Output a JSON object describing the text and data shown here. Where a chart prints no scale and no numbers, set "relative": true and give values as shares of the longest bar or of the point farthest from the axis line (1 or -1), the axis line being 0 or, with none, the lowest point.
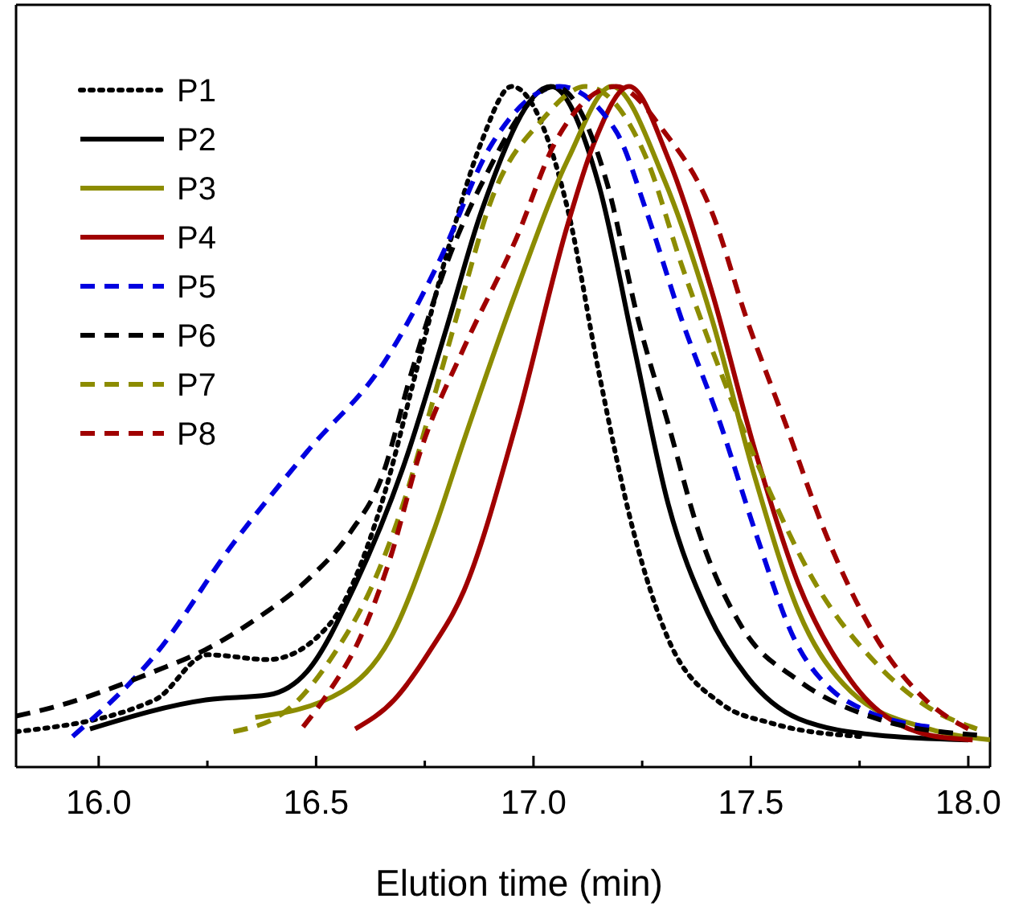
{
  "chart_data": {
    "type": "line",
    "xlabel": "Elution time (min)",
    "relative": true,
    "tick_labels": "x",
    "legend": "top left",
    "grid": false,
    "xlim": [
      15.81,
      18.05
    ],
    "xticks": [
      {
        "value": 16,
        "label": "16.0"
      },
      {
        "value": 16.25,
        "label": null
      },
      {
        "value": 16.5,
        "label": "16.5"
      },
      {
        "value": 16.75,
        "label": null
      },
      {
        "value": 17,
        "label": "17.0"
      },
      {
        "value": 17.25,
        "label": null
      },
      {
        "value": 17.5,
        "label": "17.5"
      },
      {
        "value": 17.75,
        "label": null
      },
      {
        "value": 18,
        "label": "18.0"
      }
    ],
    "series": [
      {
        "name": "P1",
        "color": "#000000",
        "line_style": "dotted",
        "x": [
          15.81,
          16.13,
          16.25,
          16.39,
          16.53,
          16.65,
          16.73,
          16.8,
          16.88,
          16.95,
          17.08,
          17.15,
          17.23,
          17.31,
          17.43,
          17.55,
          17.75
        ],
        "values": [
          0.052,
          0.099,
          0.165,
          0.158,
          0.209,
          0.386,
          0.581,
          0.753,
          0.918,
          1.0,
          0.816,
          0.581,
          0.346,
          0.188,
          0.094,
          0.064,
          0.045
        ]
      },
      {
        "name": "P2",
        "color": "#000000",
        "line_style": "solid",
        "x": [
          15.98,
          16.25,
          16.39,
          16.48,
          16.59,
          16.7,
          16.8,
          16.88,
          17.04,
          17.15,
          17.23,
          17.31,
          17.4,
          17.49,
          17.61,
          17.79,
          18.0
        ],
        "values": [
          0.056,
          0.099,
          0.106,
          0.141,
          0.268,
          0.44,
          0.645,
          0.816,
          1.0,
          0.856,
          0.621,
          0.386,
          0.228,
          0.134,
          0.071,
          0.047,
          0.04
        ]
      },
      {
        "name": "P3",
        "color": "#8c8c00",
        "line_style": "solid",
        "x": [
          16.36,
          16.56,
          16.67,
          16.77,
          16.84,
          16.96,
          17.08,
          17.18,
          17.3,
          17.41,
          17.51,
          17.61,
          17.73,
          17.91,
          18.05
        ],
        "values": [
          0.073,
          0.111,
          0.188,
          0.346,
          0.48,
          0.699,
          0.894,
          1.0,
          0.864,
          0.659,
          0.424,
          0.228,
          0.111,
          0.056,
          0.04
        ]
      },
      {
        "name": "P4",
        "color": "#a00000",
        "line_style": "solid",
        "x": [
          16.59,
          16.68,
          16.76,
          16.84,
          16.96,
          17.08,
          17.14,
          17.22,
          17.31,
          17.41,
          17.51,
          17.61,
          17.73,
          17.91,
          18.01
        ],
        "values": [
          0.056,
          0.099,
          0.169,
          0.259,
          0.504,
          0.8,
          0.918,
          1.0,
          0.894,
          0.699,
          0.464,
          0.268,
          0.127,
          0.047,
          0.04
        ]
      },
      {
        "name": "P5",
        "color": "#0000e0",
        "line_style": "dashed",
        "x": [
          15.94,
          16.13,
          16.31,
          16.48,
          16.66,
          16.78,
          16.9,
          17.06,
          17.19,
          17.26,
          17.34,
          17.43,
          17.51,
          17.6,
          17.69,
          17.75,
          17.91
        ],
        "values": [
          0.045,
          0.165,
          0.329,
          0.464,
          0.598,
          0.739,
          0.911,
          1.0,
          0.934,
          0.816,
          0.659,
          0.504,
          0.346,
          0.188,
          0.111,
          0.087,
          0.059
        ]
      },
      {
        "name": "P6",
        "color": "#000000",
        "line_style": "dashed",
        "x": [
          15.81,
          15.89,
          16.13,
          16.25,
          16.37,
          16.48,
          16.58,
          16.65,
          16.72,
          16.8,
          16.88,
          17.05,
          17.17,
          17.24,
          17.31,
          17.38,
          17.48,
          17.61,
          17.79,
          18.02
        ],
        "values": [
          0.075,
          0.087,
          0.141,
          0.174,
          0.221,
          0.275,
          0.346,
          0.424,
          0.581,
          0.739,
          0.856,
          1.0,
          0.856,
          0.659,
          0.504,
          0.346,
          0.205,
          0.127,
          0.071,
          0.047
        ]
      },
      {
        "name": "P7",
        "color": "#8c8c00",
        "line_style": "dashed",
        "x": [
          16.31,
          16.44,
          16.54,
          16.63,
          16.7,
          16.77,
          16.84,
          16.9,
          17.02,
          17.12,
          17.26,
          17.34,
          17.43,
          17.53,
          17.65,
          17.79,
          17.91,
          18.02
        ],
        "values": [
          0.052,
          0.087,
          0.165,
          0.268,
          0.386,
          0.541,
          0.699,
          0.828,
          0.951,
          1.0,
          0.894,
          0.739,
          0.581,
          0.424,
          0.268,
          0.151,
          0.087,
          0.056
        ]
      },
      {
        "name": "P8",
        "color": "#a00000",
        "line_style": "dashed",
        "x": [
          16.47,
          16.53,
          16.6,
          16.67,
          16.74,
          16.84,
          16.96,
          17.05,
          17.19,
          17.3,
          17.41,
          17.49,
          17.58,
          17.67,
          17.79,
          17.91,
          18.0
        ],
        "values": [
          0.059,
          0.111,
          0.188,
          0.306,
          0.464,
          0.616,
          0.776,
          0.918,
          1.0,
          0.934,
          0.816,
          0.659,
          0.504,
          0.346,
          0.188,
          0.094,
          0.056
        ]
      }
    ]
  }
}
